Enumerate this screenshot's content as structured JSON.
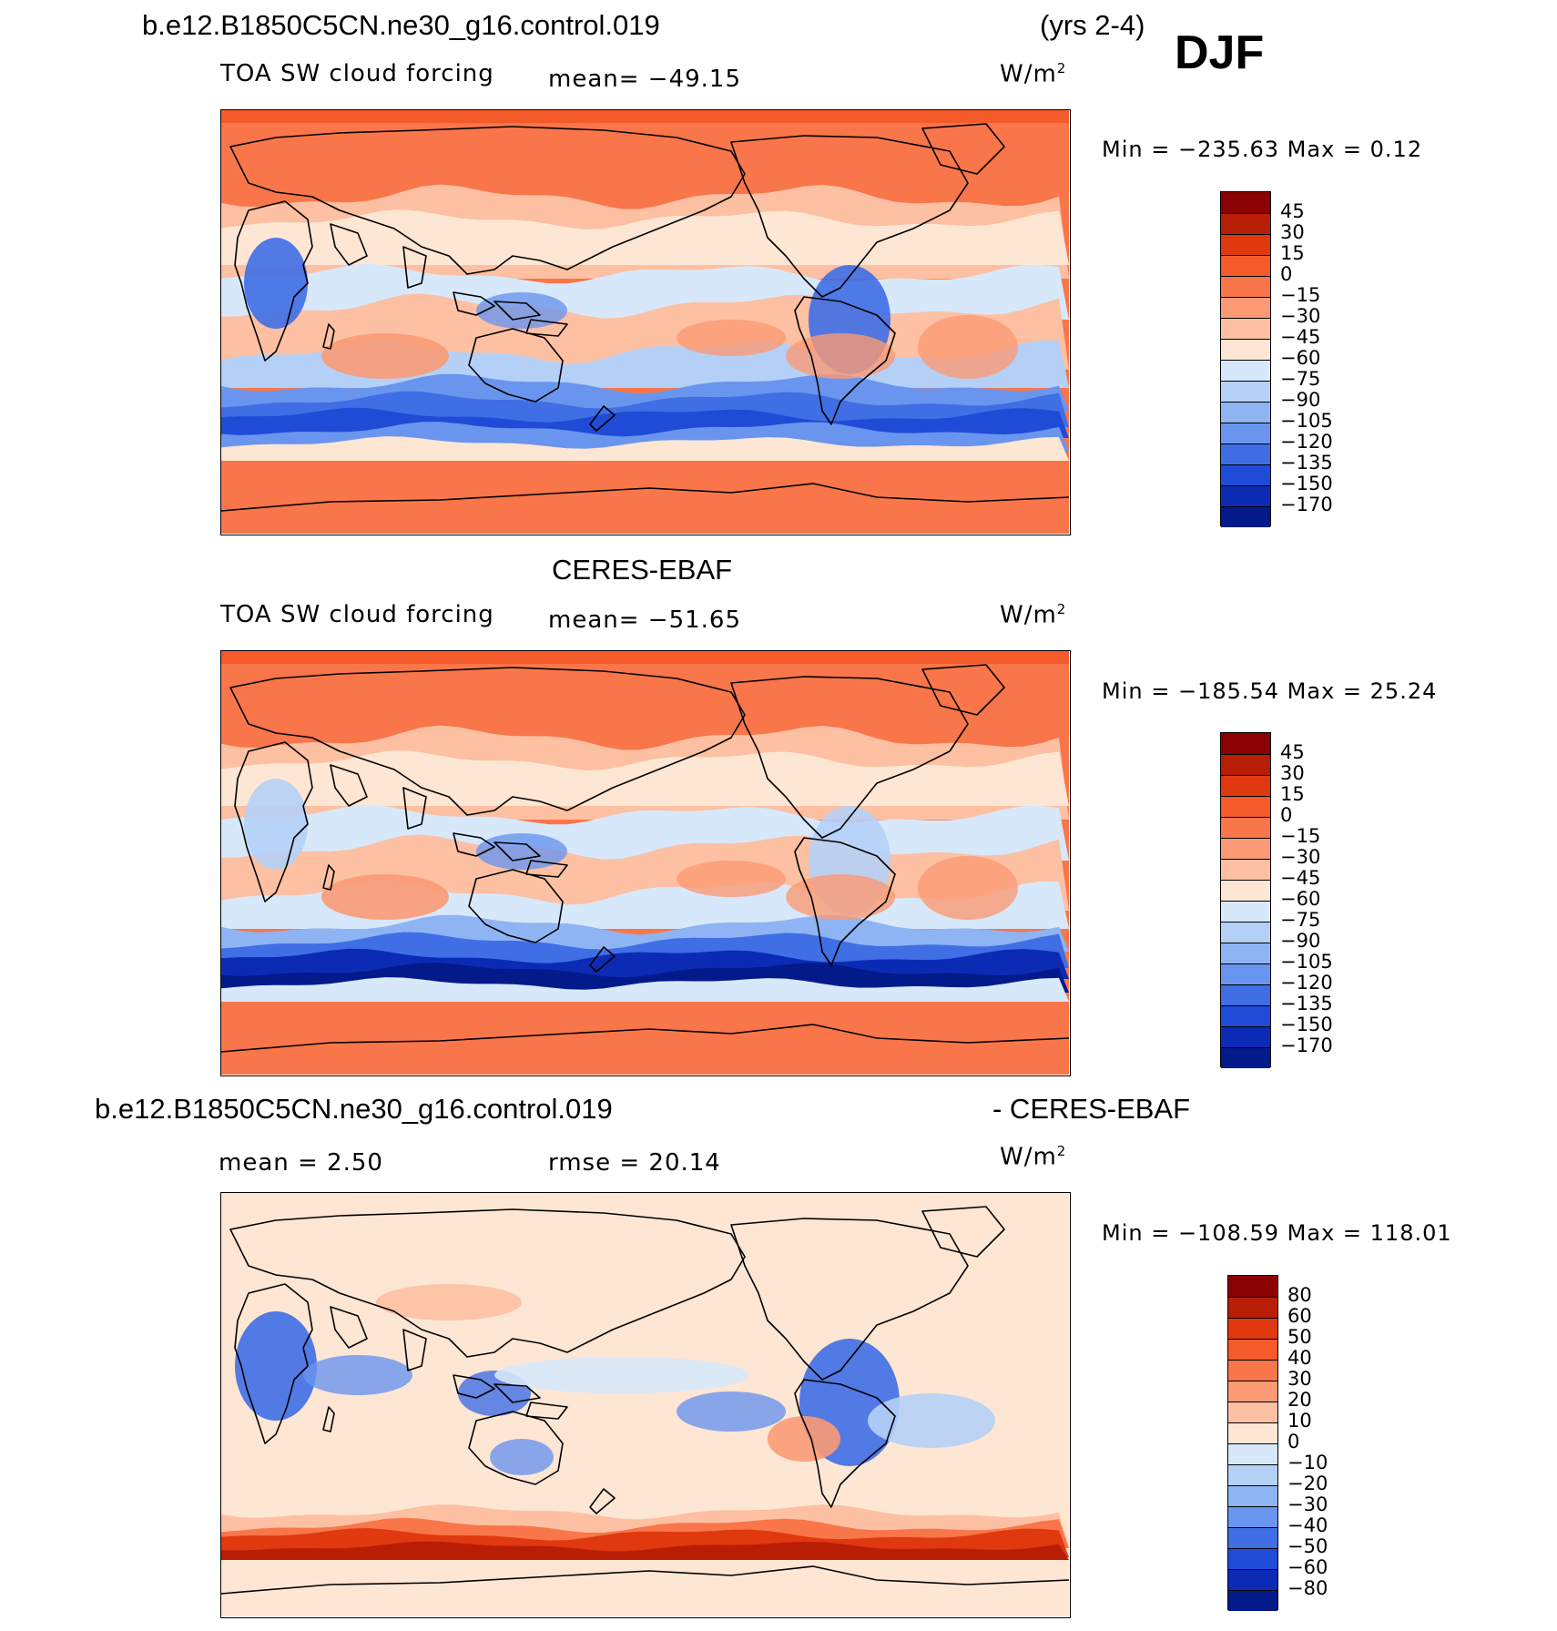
{
  "header": {
    "case_name": "b.e12.B1850C5CN.ne30_g16.control.019",
    "years": "(yrs 2-4)",
    "season": "DJF"
  },
  "panels": [
    {
      "id": "model",
      "title": "",
      "variable": "TOA SW cloud forcing",
      "stat": "mean= −49.15",
      "units_prefix": "W/m",
      "units_sup": "2",
      "minmax": "Min  =  −235.63  Max  =     0.12",
      "colorbar": {
        "labels": [
          "45",
          "30",
          "15",
          "0",
          "−15",
          "−30",
          "−45",
          "−60",
          "−75",
          "−90",
          "−105",
          "−120",
          "−135",
          "−150",
          "−170"
        ],
        "colors": [
          "#8b0000",
          "#b81d06",
          "#e0380f",
          "#f55a2a",
          "#f8764a",
          "#fb9a74",
          "#fdc0a2",
          "#fee6d4",
          "#d7e8fa",
          "#b5d0f7",
          "#8fb4f3",
          "#6a95ee",
          "#3f6ee5",
          "#1f4bd6",
          "#0b2bb5",
          "#021a8a"
        ]
      },
      "map_style": "model"
    },
    {
      "id": "obs",
      "title": "CERES-EBAF",
      "variable": "TOA SW cloud forcing",
      "stat": "mean= −51.65",
      "units_prefix": "W/m",
      "units_sup": "2",
      "minmax": "Min  =  −185.54  Max  =    25.24",
      "colorbar": {
        "labels": [
          "45",
          "30",
          "15",
          "0",
          "−15",
          "−30",
          "−45",
          "−60",
          "−75",
          "−90",
          "−105",
          "−120",
          "−135",
          "−150",
          "−170"
        ],
        "colors": [
          "#8b0000",
          "#b81d06",
          "#e0380f",
          "#f55a2a",
          "#f8764a",
          "#fb9a74",
          "#fdc0a2",
          "#fee6d4",
          "#d7e8fa",
          "#b5d0f7",
          "#8fb4f3",
          "#6a95ee",
          "#3f6ee5",
          "#1f4bd6",
          "#0b2bb5",
          "#021a8a"
        ]
      },
      "map_style": "obs"
    },
    {
      "id": "diff",
      "title_left": "b.e12.B1850C5CN.ne30_g16.control.019",
      "title_right": "- CERES-EBAF",
      "stat_left": "mean  =     2.50",
      "stat_mid": "rmse  =    20.14",
      "units_prefix": "W/m",
      "units_sup": "2",
      "minmax": "Min  =  −108.59  Max  =  118.01",
      "colorbar": {
        "labels": [
          "80",
          "60",
          "50",
          "40",
          "30",
          "20",
          "10",
          "0",
          "−10",
          "−20",
          "−30",
          "−40",
          "−50",
          "−60",
          "−80"
        ],
        "colors": [
          "#8b0000",
          "#b81d06",
          "#e0380f",
          "#f55a2a",
          "#f8764a",
          "#fb9a74",
          "#fdc0a2",
          "#fee6d4",
          "#d7e8fa",
          "#b5d0f7",
          "#8fb4f3",
          "#6a95ee",
          "#3f6ee5",
          "#1f4bd6",
          "#0b2bb5",
          "#021a8a"
        ]
      },
      "map_style": "diff"
    }
  ]
}
